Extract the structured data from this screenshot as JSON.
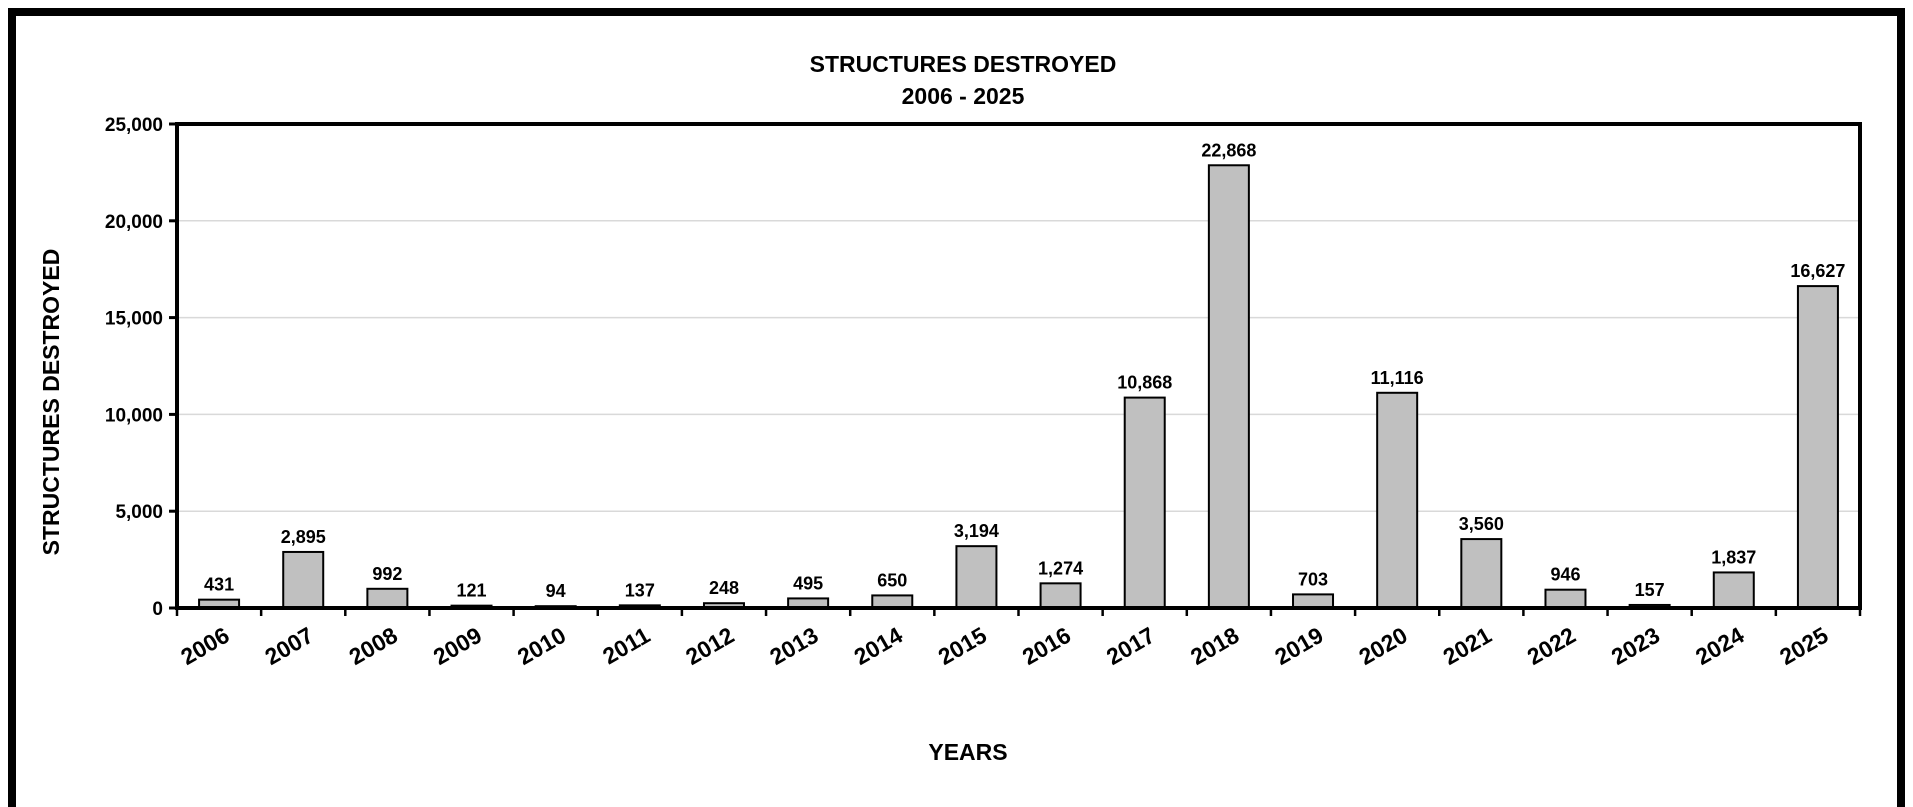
{
  "chart_data": {
    "type": "bar",
    "title": "STRUCTURES DESTROYED",
    "subtitle": "2006 - 2025",
    "xlabel": "YEARS",
    "ylabel": "STRUCTURES DESTROYED",
    "ylim": [
      0,
      25000
    ],
    "yticks": [
      0,
      5000,
      10000,
      15000,
      20000,
      25000
    ],
    "ytick_labels": [
      "0",
      "5,000",
      "10,000",
      "15,000",
      "20,000",
      "25,000"
    ],
    "grid": true,
    "categories": [
      "2006",
      "2007",
      "2008",
      "2009",
      "2010",
      "2011",
      "2012",
      "2013",
      "2014",
      "2015",
      "2016",
      "2017",
      "2018",
      "2019",
      "2020",
      "2021",
      "2022",
      "2023",
      "2024",
      "2025"
    ],
    "values": [
      431,
      2895,
      992,
      121,
      94,
      137,
      248,
      495,
      650,
      3194,
      1274,
      10868,
      22868,
      703,
      11116,
      3560,
      946,
      157,
      1837,
      16627
    ],
    "value_labels": [
      "431",
      "2,895",
      "992",
      "121",
      "94",
      "137",
      "248",
      "495",
      "650",
      "3,194",
      "1,274",
      "10,868",
      "22,868",
      "703",
      "11,116",
      "3,560",
      "946",
      "157",
      "1,837",
      "16,627"
    ],
    "colors": {
      "bar_fill": "#c0c0c0",
      "bar_stroke": "#000000",
      "grid": "#d9d9d9",
      "axis": "#000000"
    }
  }
}
